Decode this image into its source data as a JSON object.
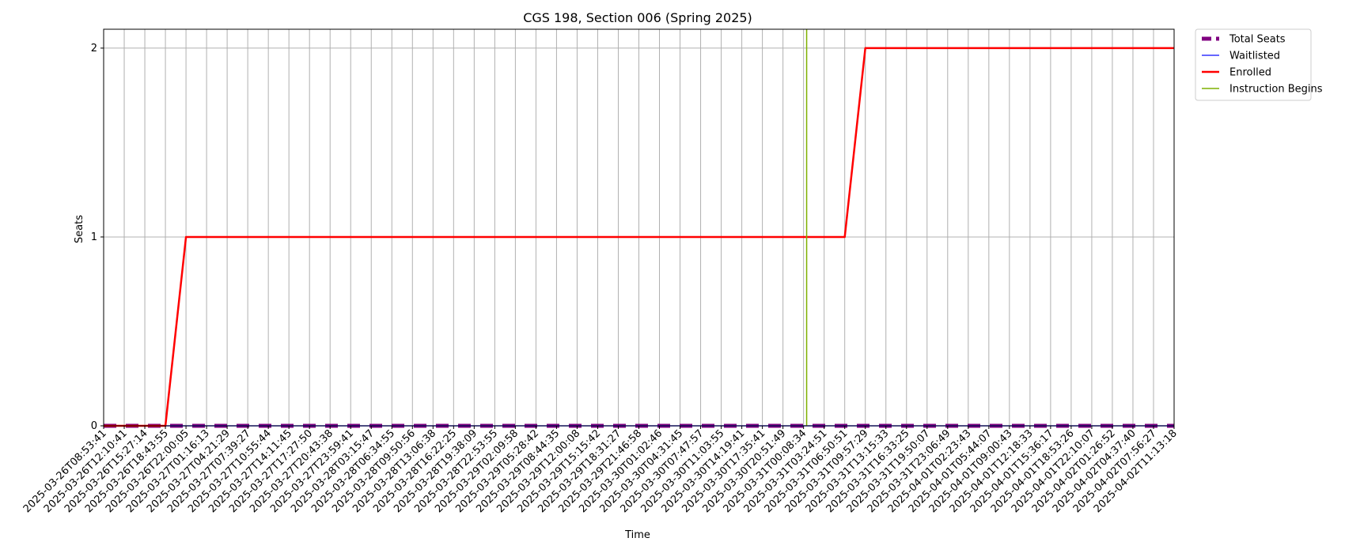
{
  "chart_data": {
    "type": "line",
    "title": "CGS 198, Section 006 (Spring 2025)",
    "xlabel": "Time",
    "ylabel": "Seats",
    "ylim": [
      0,
      2.1
    ],
    "yticks": [
      "0",
      "1",
      "2"
    ],
    "grid": true,
    "legend_position": "outside-top-right",
    "x": [
      "2025-03-26T08:53:41",
      "2025-03-26T12:10:41",
      "2025-03-26T15:27:14",
      "2025-03-26T18:43:55",
      "2025-03-26T22:00:05",
      "2025-03-27T01:16:13",
      "2025-03-27T04:21:29",
      "2025-03-27T07:39:27",
      "2025-03-27T10:55:44",
      "2025-03-27T14:11:45",
      "2025-03-27T17:27:50",
      "2025-03-27T20:43:38",
      "2025-03-27T23:59:41",
      "2025-03-28T03:15:47",
      "2025-03-28T06:34:55",
      "2025-03-28T09:50:56",
      "2025-03-28T13:06:38",
      "2025-03-28T16:22:25",
      "2025-03-28T19:38:09",
      "2025-03-28T22:53:55",
      "2025-03-29T02:09:58",
      "2025-03-29T05:28:42",
      "2025-03-29T08:44:35",
      "2025-03-29T12:00:08",
      "2025-03-29T15:15:42",
      "2025-03-29T18:31:27",
      "2025-03-29T21:46:58",
      "2025-03-30T01:02:46",
      "2025-03-30T04:31:45",
      "2025-03-30T07:47:57",
      "2025-03-30T11:03:55",
      "2025-03-30T14:19:41",
      "2025-03-30T17:35:41",
      "2025-03-30T20:51:49",
      "2025-03-31T00:08:34",
      "2025-03-31T03:24:51",
      "2025-03-31T06:50:51",
      "2025-03-31T09:57:29",
      "2025-03-31T13:15:33",
      "2025-03-31T16:33:25",
      "2025-03-31T19:50:07",
      "2025-03-31T23:06:49",
      "2025-04-01T02:23:43",
      "2025-04-01T05:44:07",
      "2025-04-01T09:00:43",
      "2025-04-01T12:18:33",
      "2025-04-01T15:36:17",
      "2025-04-01T18:53:26",
      "2025-04-01T22:10:07",
      "2025-04-02T01:26:52",
      "2025-04-02T04:37:40",
      "2025-04-02T07:56:27",
      "2025-04-02T11:13:18"
    ],
    "series": [
      {
        "name": "Total Seats",
        "color": "#800080",
        "values": [
          0,
          0,
          0,
          0,
          0,
          0,
          0,
          0,
          0,
          0,
          0,
          0,
          0,
          0,
          0,
          0,
          0,
          0,
          0,
          0,
          0,
          0,
          0,
          0,
          0,
          0,
          0,
          0,
          0,
          0,
          0,
          0,
          0,
          0,
          0,
          0,
          0,
          0,
          0,
          0,
          0,
          0,
          0,
          0,
          0,
          0,
          0,
          0,
          0,
          0,
          0,
          0,
          0
        ]
      },
      {
        "name": "Waitlisted",
        "color": "#3333ff",
        "values": [
          0,
          0,
          0,
          0,
          0,
          0,
          0,
          0,
          0,
          0,
          0,
          0,
          0,
          0,
          0,
          0,
          0,
          0,
          0,
          0,
          0,
          0,
          0,
          0,
          0,
          0,
          0,
          0,
          0,
          0,
          0,
          0,
          0,
          0,
          0,
          0,
          0,
          0,
          0,
          0,
          0,
          0,
          0,
          0,
          0,
          0,
          0,
          0,
          0,
          0,
          0,
          0,
          0
        ]
      },
      {
        "name": "Enrolled",
        "color": "#ff0000",
        "values": [
          0,
          0,
          0,
          0,
          1,
          1,
          1,
          1,
          1,
          1,
          1,
          1,
          1,
          1,
          1,
          1,
          1,
          1,
          1,
          1,
          1,
          1,
          1,
          1,
          1,
          1,
          1,
          1,
          1,
          1,
          1,
          1,
          1,
          1,
          1,
          1,
          1,
          2,
          2,
          2,
          2,
          2,
          2,
          2,
          2,
          2,
          2,
          2,
          2,
          2,
          2,
          2,
          2
        ]
      }
    ],
    "vlines": [
      {
        "name": "Instruction Begins",
        "color": "#7fb000",
        "x": "2025-03-31T00:08:34",
        "offset": 0.15
      }
    ]
  }
}
